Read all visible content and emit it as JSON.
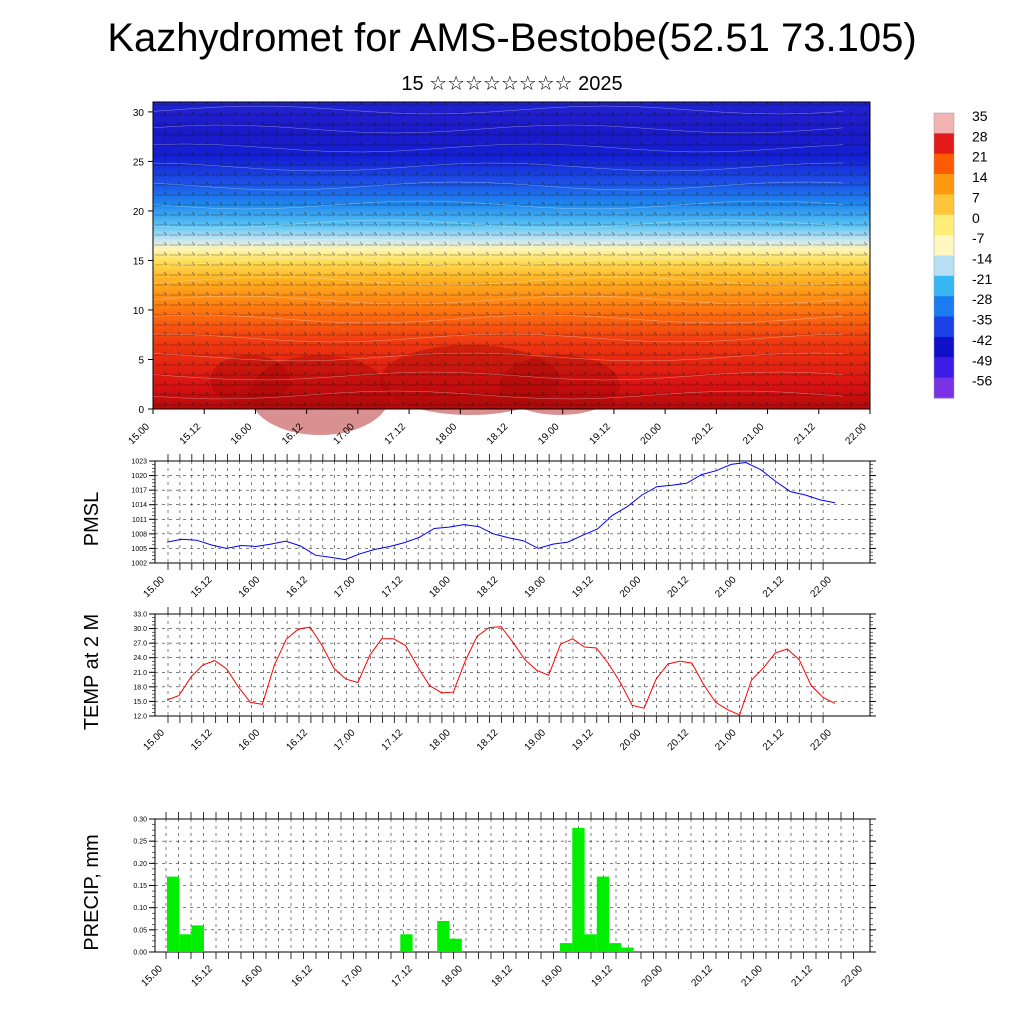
{
  "title": "Kazhydromet for AMS-Bestobe(52.51 73.105)",
  "subtitle": "15 ☆☆☆☆☆☆☆☆ 2025",
  "time_labels": [
    "15.00",
    "15.12",
    "16.00",
    "16.12",
    "17.00",
    "17.12",
    "18.00",
    "18.12",
    "19.00",
    "19.12",
    "20.00",
    "20.12",
    "21.00",
    "21.12",
    "22.00"
  ],
  "colorbar": {
    "labels": [
      "35",
      "28",
      "21",
      "14",
      "7",
      "0",
      "-7",
      "-14",
      "-21",
      "-28",
      "-35",
      "-42",
      "-49",
      "-56"
    ],
    "colors": [
      "#f2b3b3",
      "#e41a1a",
      "#ff5a00",
      "#ff9a10",
      "#ffc63a",
      "#ffef7a",
      "#fff8c0",
      "#b8e0f4",
      "#37b6f4",
      "#1a7cf0",
      "#1e40e8",
      "#1010c8",
      "#3e1ee6",
      "#7a32e6"
    ]
  },
  "chart_data": [
    {
      "id": "cross-section",
      "type": "heatmap",
      "y_ticks": [
        "0",
        "5",
        "10",
        "15",
        "20",
        "25",
        "30"
      ],
      "ylim": [
        0,
        31
      ],
      "x": [
        "15.00",
        "15.12",
        "16.00",
        "16.12",
        "17.00",
        "17.12",
        "18.00",
        "18.12",
        "19.00",
        "19.12",
        "20.00",
        "20.12",
        "21.00",
        "21.12",
        "22.00"
      ],
      "colorbar_range": [
        -56,
        35
      ]
    },
    {
      "id": "pmsl",
      "type": "line",
      "ylabel": "PMSL",
      "y_ticks": [
        "1002",
        "1005",
        "1008",
        "1011",
        "1014",
        "1017",
        "1020",
        "1023"
      ],
      "ylim": [
        1002,
        1023
      ],
      "color": "#0000ff",
      "values": [
        1006.3,
        1006.9,
        1006.7,
        1005.7,
        1005.0,
        1005.6,
        1005.4,
        1005.9,
        1006.5,
        1005.5,
        1003.6,
        1003.2,
        1002.7,
        1003.9,
        1004.8,
        1005.4,
        1006.2,
        1007.3,
        1009.1,
        1009.4,
        1009.9,
        1009.5,
        1008.0,
        1007.2,
        1006.6,
        1005.0,
        1005.9,
        1006.3,
        1007.7,
        1009.0,
        1011.8,
        1013.6,
        1016.0,
        1017.7,
        1018.0,
        1018.4,
        1020.2,
        1021.0,
        1022.3,
        1022.7,
        1021.2,
        1018.8,
        1016.7,
        1016.0,
        1015.0,
        1014.4
      ]
    },
    {
      "id": "temp2m",
      "type": "line",
      "ylabel": "TEMP at 2 M",
      "y_ticks": [
        "12.0",
        "15.0",
        "18.0",
        "21.0",
        "24.0",
        "27.0",
        "30.0",
        "33.0"
      ],
      "ylim": [
        12,
        33
      ],
      "color": "#ff0000",
      "values": [
        15.3,
        16.2,
        20.0,
        22.5,
        23.4,
        21.7,
        17.9,
        14.8,
        14.4,
        22.5,
        27.8,
        29.9,
        30.3,
        26.5,
        21.8,
        19.6,
        18.9,
        24.5,
        27.9,
        27.9,
        26.5,
        22.2,
        18.3,
        16.8,
        16.9,
        23.3,
        28.4,
        30.2,
        30.4,
        27.2,
        23.6,
        21.4,
        20.4,
        26.8,
        27.9,
        26.2,
        26.0,
        22.8,
        18.9,
        14.2,
        13.6,
        19.6,
        22.7,
        23.3,
        22.9,
        18.4,
        14.8,
        13.3,
        12.2,
        19.4,
        21.9,
        25.0,
        25.8,
        23.6,
        18.3,
        15.8,
        14.6
      ]
    },
    {
      "id": "precip",
      "type": "bar",
      "ylabel": "PRECIP, mm",
      "y_ticks": [
        "0.00",
        "0.05",
        "0.10",
        "0.15",
        "0.20",
        "0.25",
        "0.30"
      ],
      "ylim": [
        0,
        0.3
      ],
      "color": "#00ee00",
      "values": [
        0.17,
        0.04,
        0.06,
        0,
        0,
        0,
        0,
        0,
        0,
        0,
        0,
        0,
        0,
        0,
        0,
        0,
        0,
        0,
        0,
        0.04,
        0,
        0,
        0.07,
        0.03,
        0,
        0,
        0,
        0,
        0,
        0,
        0,
        0,
        0.02,
        0.28,
        0.04,
        0.17,
        0.02,
        0.01,
        0,
        0,
        0,
        0,
        0,
        0,
        0,
        0,
        0,
        0,
        0,
        0,
        0,
        0,
        0,
        0,
        0,
        0,
        0
      ]
    }
  ]
}
